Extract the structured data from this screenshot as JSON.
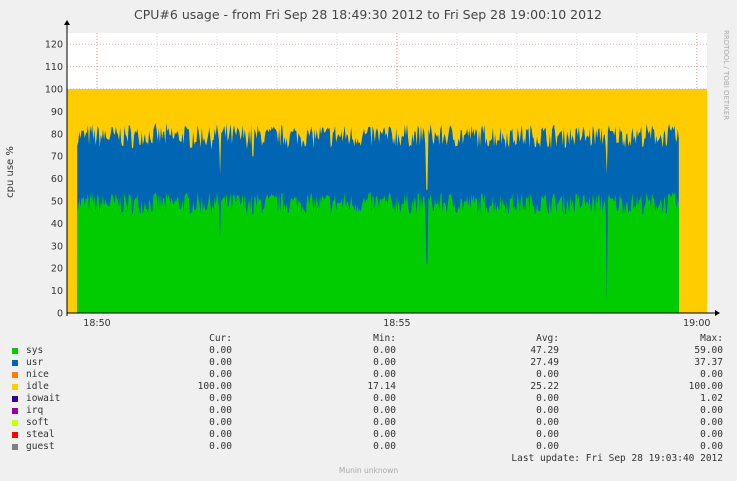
{
  "chart_data": {
    "type": "area",
    "title": "CPU#6 usage - from Fri Sep 28 18:49:30 2012 to Fri Sep 28 19:00:10 2012",
    "ylabel": "cpu use %",
    "side_label": "RRDTOOL / TOBI OETIKER",
    "ylim": [
      0,
      125
    ],
    "y_ticks": [
      0,
      10,
      20,
      30,
      40,
      50,
      60,
      70,
      80,
      90,
      100,
      110,
      120
    ],
    "x_range_minutes": [
      -0.5,
      10.17
    ],
    "x_ticks": [
      {
        "label": "18:50",
        "minute": 0
      },
      {
        "label": "18:55",
        "minute": 5
      },
      {
        "label": "19:00",
        "minute": 10
      }
    ],
    "stacked": true,
    "series_profile": {
      "sys_typical": 49,
      "usr_typical": 30,
      "data_start_minute": -0.33,
      "data_end_minute": 9.7,
      "dips": [
        {
          "minute": 2.05,
          "total": 62,
          "sys": 34
        },
        {
          "minute": 2.6,
          "total": 70,
          "sys": 44
        },
        {
          "minute": 5.5,
          "total": 55,
          "sys": 22
        },
        {
          "minute": 8.5,
          "total": 62,
          "sys": 5
        }
      ]
    },
    "series": [
      {
        "name": "sys",
        "color": "#00cc00",
        "cur": "0.00",
        "min": "0.00",
        "avg": "47.29",
        "max": "59.00"
      },
      {
        "name": "usr",
        "color": "#0066b3",
        "cur": "0.00",
        "min": "0.00",
        "avg": "27.49",
        "max": "37.37"
      },
      {
        "name": "nice",
        "color": "#ff8000",
        "cur": "0.00",
        "min": "0.00",
        "avg": "0.00",
        "max": "0.00"
      },
      {
        "name": "idle",
        "color": "#ffcc00",
        "cur": "100.00",
        "min": "17.14",
        "avg": "25.22",
        "max": "100.00"
      },
      {
        "name": "iowait",
        "color": "#330099",
        "cur": "0.00",
        "min": "0.00",
        "avg": "0.00",
        "max": "1.02"
      },
      {
        "name": "irq",
        "color": "#990099",
        "cur": "0.00",
        "min": "0.00",
        "avg": "0.00",
        "max": "0.00"
      },
      {
        "name": "soft",
        "color": "#ccff00",
        "cur": "0.00",
        "min": "0.00",
        "avg": "0.00",
        "max": "0.00"
      },
      {
        "name": "steal",
        "color": "#ff0000",
        "cur": "0.00",
        "min": "0.00",
        "avg": "0.00",
        "max": "0.00"
      },
      {
        "name": "guest",
        "color": "#808080",
        "cur": "0.00",
        "min": "0.00",
        "avg": "0.00",
        "max": "0.00"
      }
    ]
  },
  "legend": {
    "headers": {
      "cur": "Cur:",
      "min": "Min:",
      "avg": "Avg:",
      "max": "Max:"
    },
    "last_update": "Last update:  Fri Sep 28 19:03:40 2012",
    "footer": "Munin unknown"
  }
}
